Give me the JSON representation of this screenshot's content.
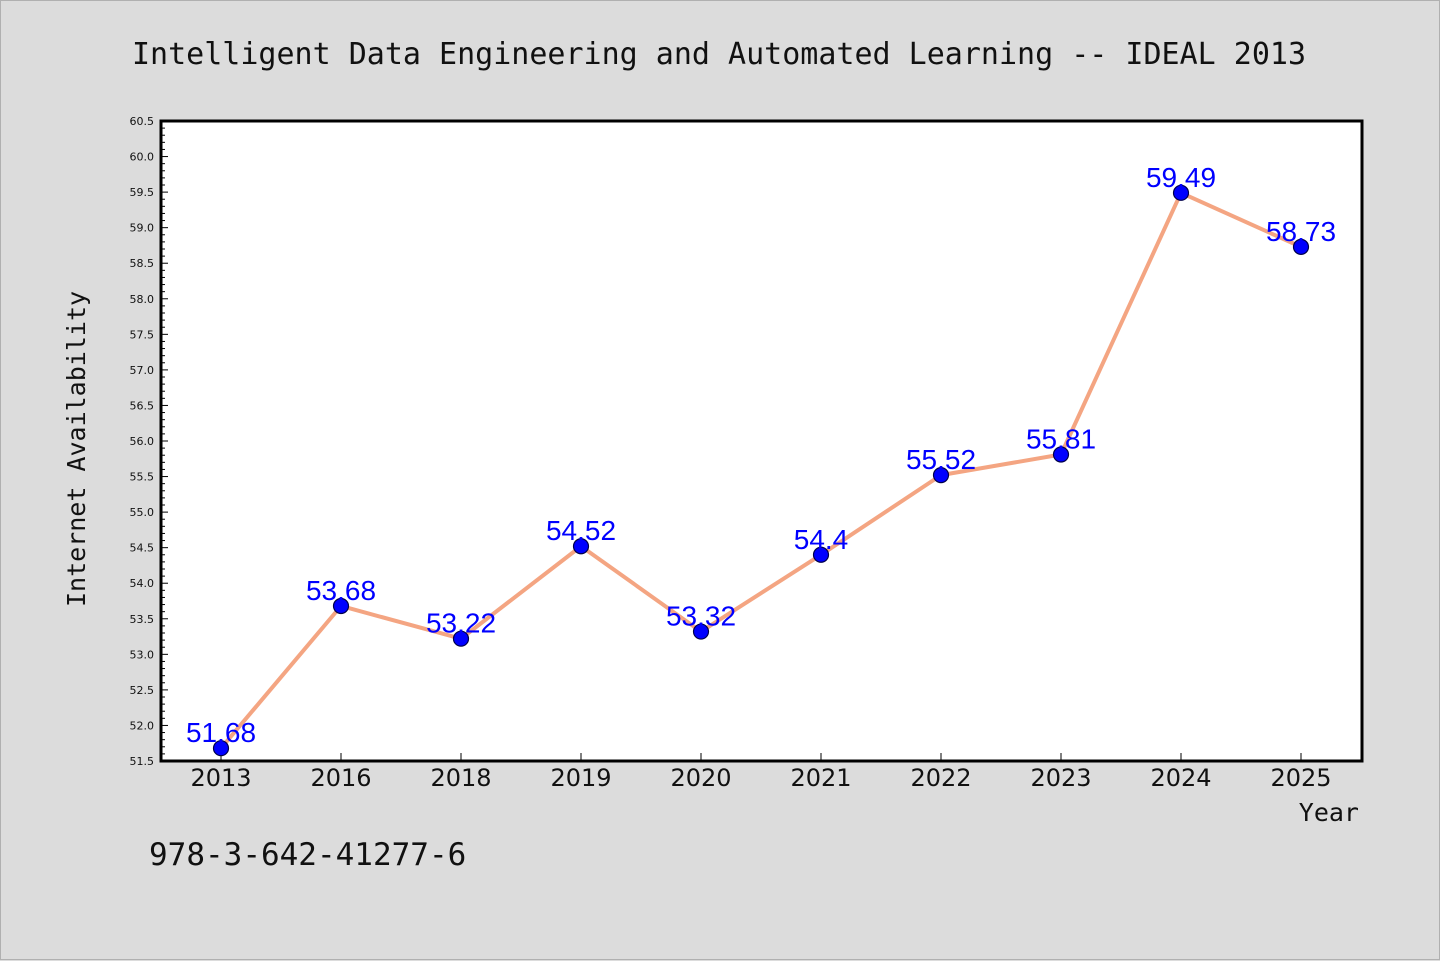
{
  "chart_data": {
    "type": "line",
    "title": "Intelligent Data Engineering and Automated Learning -- IDEAL 2013",
    "xlabel": "Year",
    "ylabel": "Internet Availability",
    "categories": [
      "2013",
      "2016",
      "2018",
      "2019",
      "2020",
      "2021",
      "2022",
      "2023",
      "2024",
      "2025"
    ],
    "series": [
      {
        "values": [
          51.68,
          53.68,
          53.22,
          54.52,
          53.32,
          54.4,
          55.52,
          55.81,
          59.49,
          58.73
        ],
        "line_color": "#f4a582",
        "marker_color": "#0000ff"
      }
    ],
    "data_labels": [
      "51.68",
      "53.68",
      "53.22",
      "54.52",
      "53.32",
      "54.4",
      "55.52",
      "55.81",
      "59.49",
      "58.73"
    ],
    "ylim": [
      51.5,
      60.5
    ],
    "yticks": [
      "51.5",
      "52.0",
      "52.5",
      "53.0",
      "53.5",
      "54.0",
      "54.5",
      "55.0",
      "55.5",
      "56.0",
      "56.5",
      "57.0",
      "57.5",
      "58.0",
      "58.5",
      "59.0",
      "59.5",
      "60.0",
      "60.5"
    ],
    "grid": false,
    "background_color": "#dcdcdc",
    "plot_background_color": "#ffffff",
    "label_color": "#0000ff"
  },
  "footer": {
    "isbn": "978-3-642-41277-6"
  }
}
